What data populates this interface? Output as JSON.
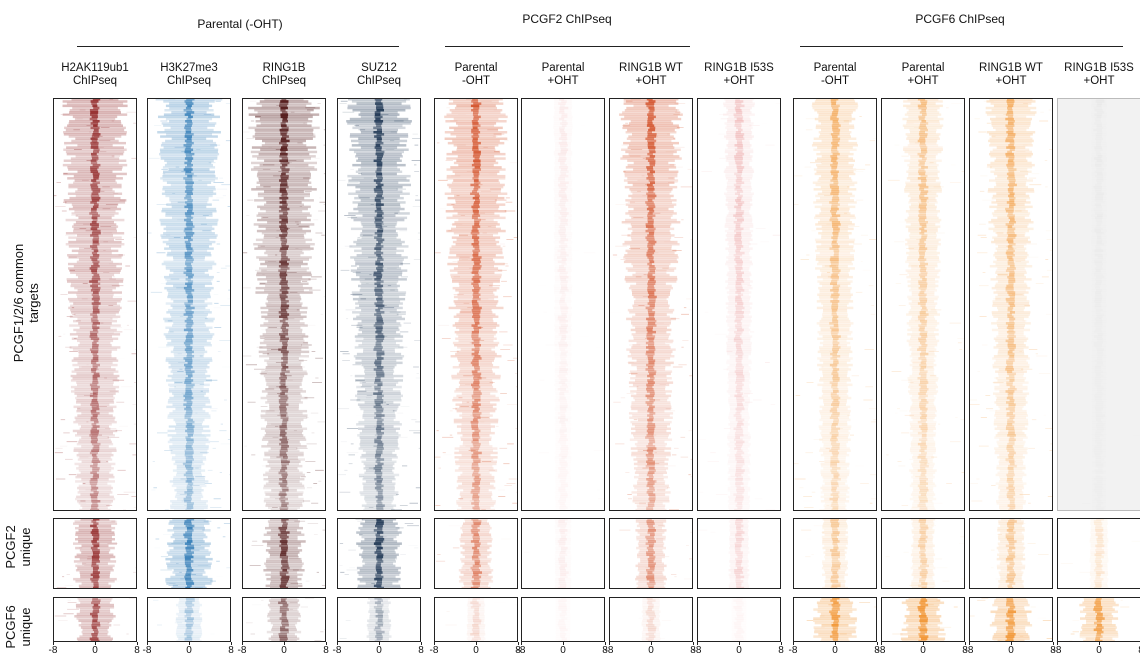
{
  "chart_data": {
    "type": "heatmap",
    "groups": [
      {
        "title": "Parental (-OHT)",
        "columns": [
          0,
          1,
          2,
          3
        ]
      },
      {
        "title": "PCGF2 ChIPseq",
        "columns": [
          4,
          5,
          6,
          7
        ]
      },
      {
        "title": "PCGF6 ChIPseq",
        "columns": [
          8,
          9,
          10,
          11
        ]
      }
    ],
    "columns": [
      {
        "line1": "H2AK119ub1",
        "line2": "ChIPseq",
        "color": "#8b1a1a",
        "intensity": [
          0.9,
          0.8,
          0.75
        ]
      },
      {
        "line1": "H3K27me3",
        "line2": "ChIPseq",
        "color": "#2a77b4",
        "intensity": [
          0.85,
          0.9,
          0.35
        ]
      },
      {
        "line1": "RING1B",
        "line2": "ChIPseq",
        "color": "#4a0e0e",
        "intensity": [
          0.95,
          0.8,
          0.55
        ]
      },
      {
        "line1": "SUZ12",
        "line2": "ChIPseq",
        "color": "#0b2545",
        "intensity": [
          0.9,
          0.85,
          0.3
        ]
      },
      {
        "line1": "Parental",
        "line2": "-OHT",
        "color": "#d0461c",
        "intensity": [
          0.9,
          0.55,
          0.15
        ]
      },
      {
        "line1": "Parental",
        "line2": "+OHT",
        "color": "#e06a6a",
        "intensity": [
          0.1,
          0.08,
          0.05
        ]
      },
      {
        "line1": "RING1B WT",
        "line2": "+OHT",
        "color": "#d0461c",
        "intensity": [
          0.85,
          0.5,
          0.15
        ]
      },
      {
        "line1": "RING1B I53S",
        "line2": "+OHT",
        "color": "#e06a6a",
        "intensity": [
          0.3,
          0.2,
          0.05
        ]
      },
      {
        "line1": "Parental",
        "line2": "-OHT",
        "color": "#f08a1e",
        "intensity": [
          0.55,
          0.35,
          0.85
        ]
      },
      {
        "line1": "Parental",
        "line2": "+OHT",
        "color": "#f08a1e",
        "intensity": [
          0.45,
          0.3,
          0.85
        ]
      },
      {
        "line1": "RING1B WT",
        "line2": "+OHT",
        "color": "#f08a1e",
        "intensity": [
          0.6,
          0.4,
          0.8
        ]
      },
      {
        "line1": "RING1B I53S",
        "line2": "+OHT",
        "color": "#f08a1e",
        "intensity": [
          0.05,
          0.15,
          0.7
        ]
      }
    ],
    "rows": [
      {
        "line1": "PCGF1/2/6 common",
        "line2": "targets"
      },
      {
        "line1": "PCGF2",
        "line2": "unique"
      },
      {
        "line1": "PCGF6",
        "line2": "unique"
      }
    ],
    "x_ticks": [
      "-8",
      "0",
      "8"
    ],
    "xlim": [
      -8,
      8
    ]
  }
}
